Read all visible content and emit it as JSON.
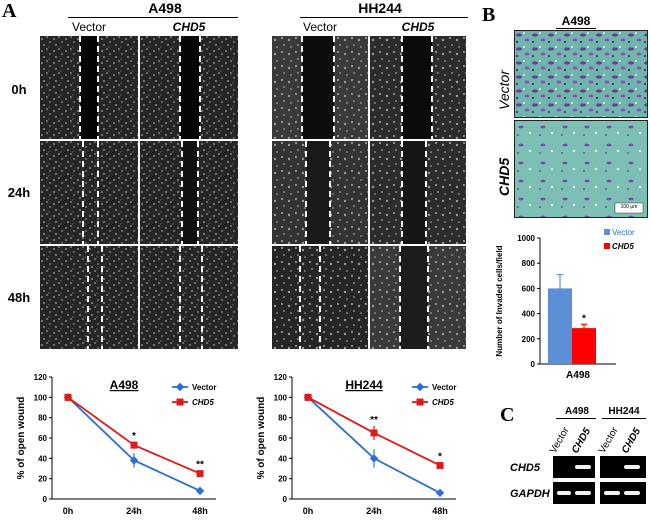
{
  "panel_a": {
    "letter": "A",
    "cell_lines": [
      "A498",
      "HH244"
    ],
    "conditions": [
      "Vector",
      "CHD5"
    ],
    "timepoints": [
      "0h",
      "24h",
      "48h"
    ]
  },
  "panel_b": {
    "letter": "B",
    "cell_line": "A498",
    "row_labels": [
      "Vector",
      "CHD5"
    ],
    "scale_bar": "100 μm"
  },
  "panel_c": {
    "letter": "C",
    "cell_lines": [
      "A498",
      "HH244"
    ],
    "lane_labels": [
      "Vector",
      "CHD5"
    ],
    "genes": [
      "CHD5",
      "GAPDH"
    ]
  },
  "colors": {
    "vector": "#2e6fd1",
    "chd5": "#e0191b",
    "bar_vector": "#5b8fd6",
    "bar_chd5": "#ff0000"
  },
  "chart_data": [
    {
      "type": "line",
      "title": "A498",
      "x": [
        "0h",
        "24h",
        "48h"
      ],
      "ylabel": "% of open wound",
      "ylim": [
        0,
        120
      ],
      "yticks": [
        0,
        20,
        40,
        60,
        80,
        100,
        120
      ],
      "series": [
        {
          "name": "Vector",
          "values": [
            100,
            38,
            8
          ],
          "errors": [
            0,
            7,
            2
          ]
        },
        {
          "name": "CHD5",
          "values": [
            100,
            53,
            25
          ],
          "errors": [
            0,
            3,
            3
          ]
        }
      ],
      "annotations": [
        {
          "x": "24h",
          "text": "*"
        },
        {
          "x": "48h",
          "text": "**"
        }
      ]
    },
    {
      "type": "line",
      "title": "HH244",
      "x": [
        "0h",
        "24h",
        "48h"
      ],
      "ylabel": "% of open wound",
      "ylim": [
        0,
        120
      ],
      "yticks": [
        0,
        20,
        40,
        60,
        80,
        100,
        120
      ],
      "series": [
        {
          "name": "Vector",
          "values": [
            100,
            40,
            6
          ],
          "errors": [
            0,
            9,
            3
          ]
        },
        {
          "name": "CHD5",
          "values": [
            100,
            65,
            33
          ],
          "errors": [
            0,
            7,
            3
          ]
        }
      ],
      "annotations": [
        {
          "x": "24h",
          "text": "**"
        },
        {
          "x": "48h",
          "text": "*"
        }
      ]
    },
    {
      "type": "bar",
      "categories": [
        "Vector",
        "CHD5"
      ],
      "values": [
        600,
        285
      ],
      "errors": [
        110,
        30
      ],
      "xlabel": "A498",
      "ylabel": "Number of Invaded cells/field",
      "ylim": [
        0,
        1000
      ],
      "yticks": [
        0,
        200,
        400,
        600,
        800,
        1000
      ],
      "annotations": [
        {
          "x": "CHD5",
          "text": "*"
        }
      ]
    }
  ]
}
